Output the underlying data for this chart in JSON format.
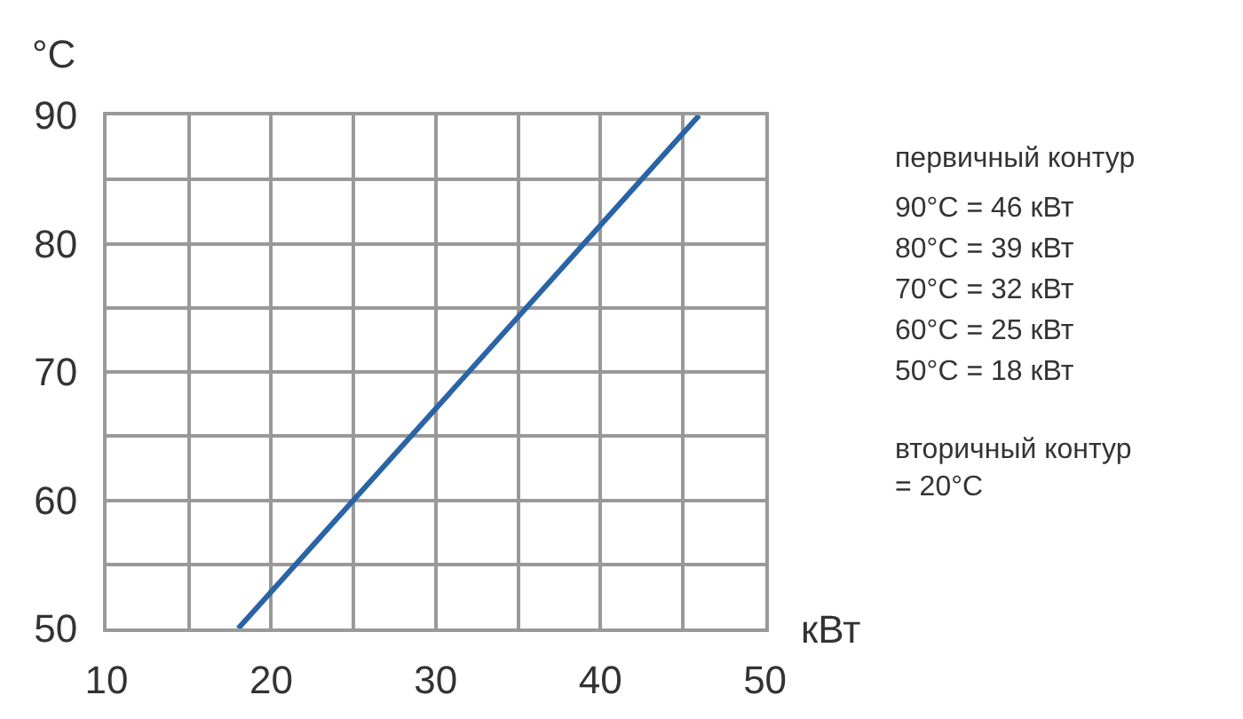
{
  "chart_data": {
    "type": "line",
    "xlabel": "кВт",
    "ylabel": "°C",
    "x": [
      18,
      46
    ],
    "series": [
      {
        "color": "#2a64a6",
        "values": [
          50,
          90
        ]
      }
    ],
    "xlim": [
      10,
      50
    ],
    "xticks": [
      10,
      {
        "value": 15,
        "label": null
      },
      20,
      {
        "value": 25,
        "label": null
      },
      30,
      {
        "value": 35,
        "label": null
      },
      40,
      {
        "value": 45,
        "label": null
      },
      50
    ],
    "ylim": [
      50,
      90
    ],
    "yticks": [
      50,
      {
        "value": 55,
        "label": null
      },
      60,
      {
        "value": 65,
        "label": null
      },
      70,
      {
        "value": 75,
        "label": null
      },
      80,
      {
        "value": 85,
        "label": null
      },
      90
    ],
    "grid": true,
    "marker": "none",
    "line_style": "solid",
    "annotations": [
      "первичный контур",
      "90°C = 46 кВт",
      "80°C = 39 кВт",
      "70°C = 32 кВт",
      "60°C = 25 кВт",
      "50°C = 18 кВт",
      "вторичный контур\n= 20°C"
    ]
  }
}
